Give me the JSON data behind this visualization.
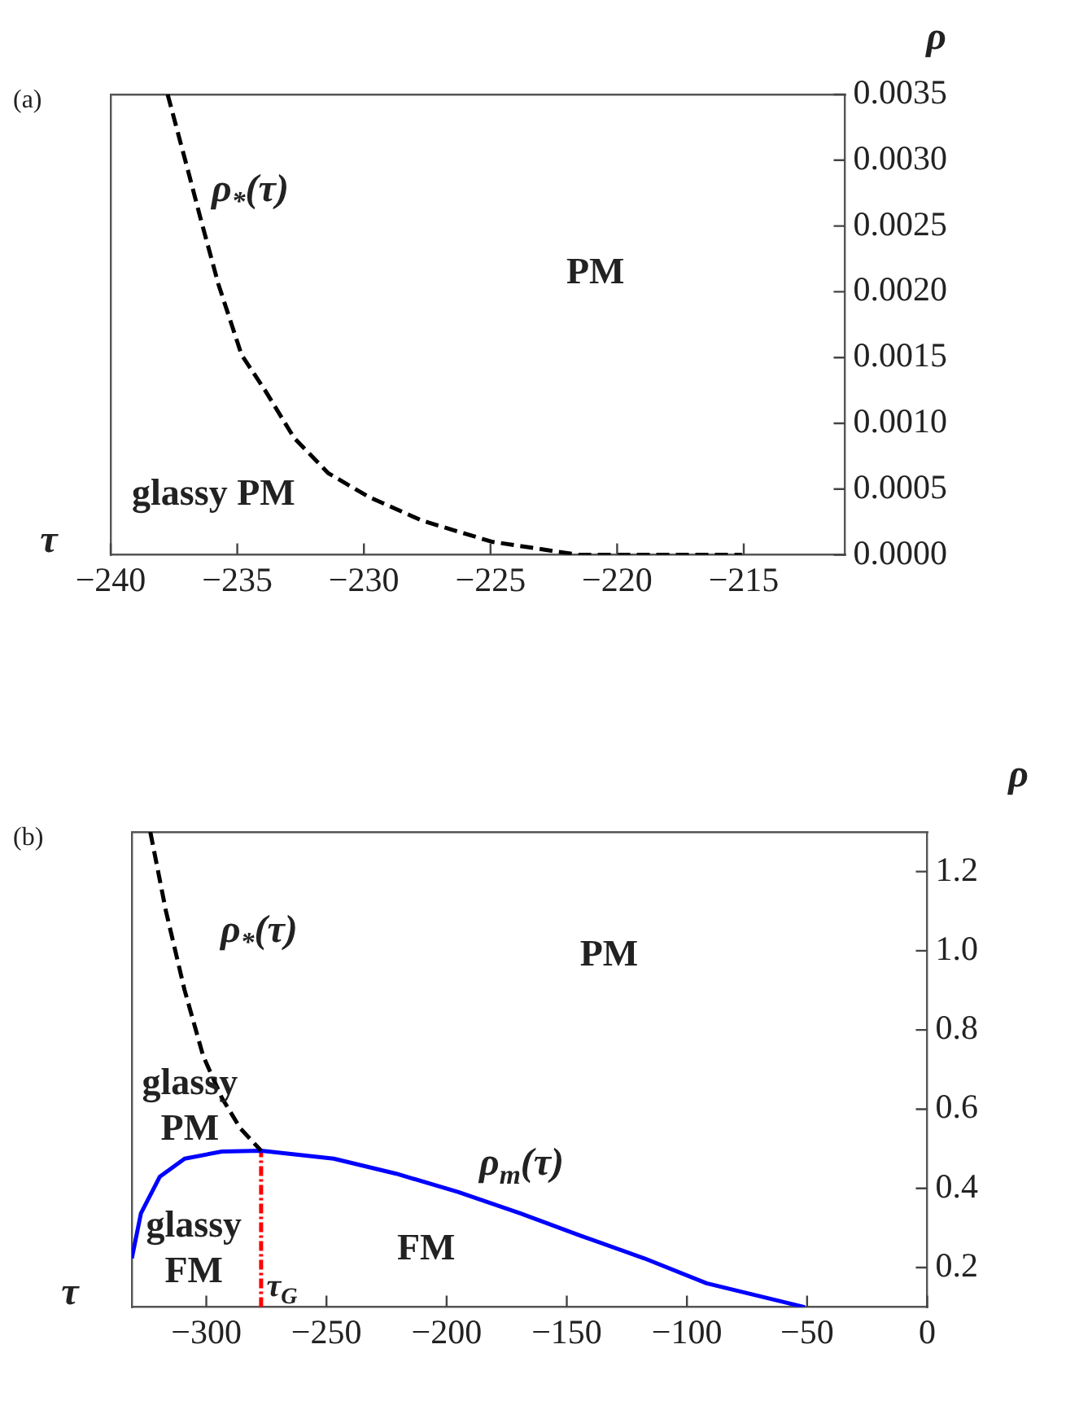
{
  "chart_data": [
    {
      "type": "line",
      "title": "(a)",
      "xlabel": "τ",
      "ylabel": "ρ",
      "xlim": [
        -240,
        -211
      ],
      "xticks": [
        {
          "value": -240,
          "label": "−240"
        },
        {
          "value": -235,
          "label": "−235"
        },
        {
          "value": -230,
          "label": "−230"
        },
        {
          "value": -225,
          "label": "−225"
        },
        {
          "value": -220,
          "label": "−220"
        },
        {
          "value": -215,
          "label": "−215"
        }
      ],
      "ylim": [
        0,
        0.0035
      ],
      "yticks": [
        {
          "value": 0,
          "label": "0.0000"
        },
        {
          "value": 0.0005,
          "label": "0.0005"
        },
        {
          "value": 0.001,
          "label": "0.0010"
        },
        {
          "value": 0.0015,
          "label": "0.0015"
        },
        {
          "value": 0.002,
          "label": "0.0020"
        },
        {
          "value": 0.0025,
          "label": "0.0025"
        },
        {
          "value": 0.003,
          "label": "0.0030"
        },
        {
          "value": 0.0035,
          "label": "0.0035"
        }
      ],
      "grid": false,
      "legend": false,
      "marker": "none",
      "annotations": [
        "PM",
        "glassy PM"
      ],
      "series": [
        {
          "name": "ρ$_{*}$(τ)",
          "color": "#000000",
          "line_style": "dashed",
          "x": [
            -237.75,
            -237.0,
            -236.44,
            -235.75,
            -234.83,
            -233.9,
            -232.76,
            -231.4,
            -229.8,
            -227.7,
            -224.95,
            -221.5,
            -218.06,
            -215.07
          ],
          "values": [
            0.0035,
            0.00296,
            0.00255,
            0.00206,
            0.00152,
            0.00125,
            0.00089,
            0.00062,
            0.00044,
            0.00026,
            0.0001,
            0,
            0,
            0
          ]
        }
      ]
    },
    {
      "type": "line",
      "title": "(b)",
      "xlabel": "τ",
      "ylabel": "ρ",
      "xlim": [
        -331,
        0
      ],
      "xticks": [
        {
          "value": -300,
          "label": "−300"
        },
        {
          "value": -250,
          "label": "−250"
        },
        {
          "value": -200,
          "label": "−200"
        },
        {
          "value": -150,
          "label": "−150"
        },
        {
          "value": -100,
          "label": "−100"
        },
        {
          "value": -50,
          "label": "−50"
        },
        0
      ],
      "ylim": [
        0.1,
        1.3
      ],
      "yticks": [
        0.2,
        0.4,
        0.6,
        0.8,
        {
          "value": 1.0,
          "label": "1.0"
        },
        1.2
      ],
      "grid": false,
      "legend": false,
      "marker": "none",
      "annotations": [
        "PM",
        "glassy PM",
        "FM",
        "glassy FM",
        {
          "text": "τ$_{G}$",
          "x": -277,
          "y": 0.1
        }
      ],
      "series": [
        {
          "name": "ρ$_{*}$(τ)",
          "color": "#000000",
          "line_style": "dashed",
          "x": [
            -323.3,
            -316.8,
            -309.1,
            -301.3,
            -293.5,
            -285.8,
            -277.2
          ],
          "values": [
            1.3,
            1.1,
            0.902,
            0.734,
            0.628,
            0.551,
            0.495
          ]
        },
        {
          "name": "ρ$_{m}$(τ)",
          "color": "#0000ff",
          "line_style": "solid",
          "x": [
            -331,
            -327.2,
            -319.4,
            -309,
            -293.5,
            -277.2,
            -247,
            -221,
            -195.3,
            -169.4,
            -143.6,
            -117.7,
            -91.8,
            -51
          ],
          "values": [
            0.223,
            0.337,
            0.429,
            0.475,
            0.493,
            0.495,
            0.475,
            0.437,
            0.391,
            0.337,
            0.279,
            0.223,
            0.16,
            0.1
          ]
        },
        {
          "color": "#ff0000",
          "line_style": "dotted",
          "x": [
            -277.2,
            -277.2
          ],
          "values": [
            0.1,
            0.495
          ]
        }
      ]
    }
  ]
}
